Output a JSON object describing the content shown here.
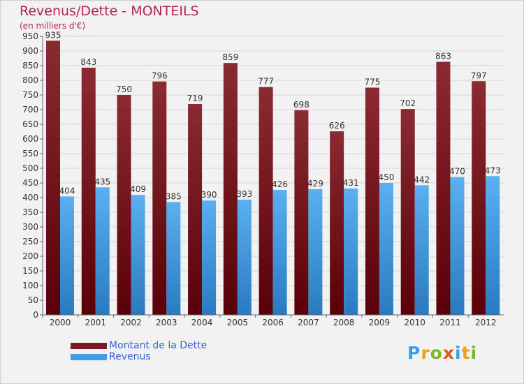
{
  "header": {
    "title": "Revenus/Dette - MONTEILS",
    "subtitle": "(en milliers d'€)"
  },
  "chart_data": {
    "type": "bar",
    "categories": [
      "2000",
      "2001",
      "2002",
      "2003",
      "2004",
      "2005",
      "2006",
      "2007",
      "2008",
      "2009",
      "2010",
      "2011",
      "2012"
    ],
    "series": [
      {
        "name": "Montant de la Dette",
        "values": [
          935,
          843,
          750,
          796,
          719,
          859,
          777,
          698,
          626,
          775,
          702,
          863,
          797
        ],
        "color": "#7a1a22"
      },
      {
        "name": "Revenus",
        "values": [
          404,
          435,
          409,
          385,
          390,
          393,
          426,
          429,
          431,
          450,
          442,
          470,
          473
        ],
        "color": "#3f9be6"
      }
    ],
    "ylim": [
      0,
      950
    ],
    "ytick_step": 50,
    "grid": true,
    "legend_placement": "bottom-left"
  },
  "logo": {
    "letters": [
      "P",
      "r",
      "o",
      "x",
      "i",
      "t",
      "i"
    ],
    "colors": [
      "#3aa0e6",
      "#f0a020",
      "#7ab828",
      "#e05a20",
      "#3aa0e6",
      "#f0a020",
      "#7ab828"
    ]
  }
}
